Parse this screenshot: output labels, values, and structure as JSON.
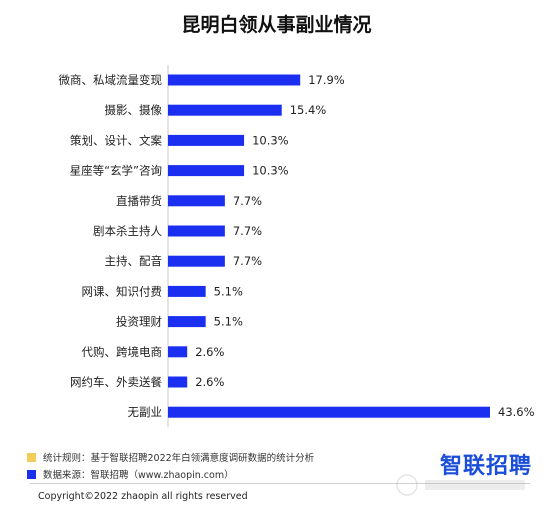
{
  "title": "昆明白领从事副业情况",
  "colors": {
    "bar": "#1a2ff0",
    "note1": "#f2cd5a",
    "note2": "#1a2ff0",
    "brand": "#1a4ed8"
  },
  "notes": {
    "rule": "统计规则：基于智联招聘2022年白领满意度调研数据的统计分析",
    "source": "数据来源：智联招聘（www.zhaopin.com）"
  },
  "copyright": "Copyright©2022 zhaopin all rights reserved",
  "brand": "智联招聘",
  "chart_data": {
    "type": "bar",
    "orientation": "horizontal",
    "title": "昆明白领从事副业情况",
    "categories": [
      "微商、私域流量变现",
      "摄影、摄像",
      "策划、设计、文案",
      "星座等“玄学”咨询",
      "直播带货",
      "剧本杀主持人",
      "主持、配音",
      "网课、知识付费",
      "投资理财",
      "代购、跨境电商",
      "网约车、外卖送餐",
      "无副业"
    ],
    "values": [
      17.9,
      15.4,
      10.3,
      10.3,
      7.7,
      7.7,
      7.7,
      5.1,
      5.1,
      2.6,
      2.6,
      43.6
    ],
    "value_labels": [
      "17.9%",
      "15.4%",
      "10.3%",
      "10.3%",
      "7.7%",
      "7.7%",
      "7.7%",
      "5.1%",
      "5.1%",
      "2.6%",
      "2.6%",
      "43.6%"
    ],
    "unit": "%",
    "xlim": [
      0,
      43.6
    ],
    "grid": false,
    "legend": "none"
  }
}
